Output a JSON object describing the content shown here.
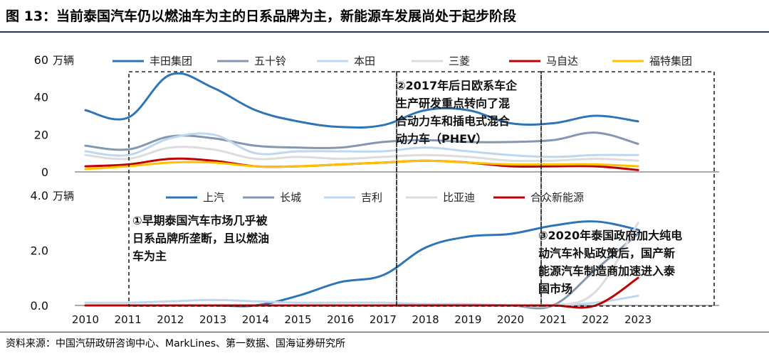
{
  "figure_title": "图 13：当前泰国汽车仍以燃油车为主的日系品牌为主，新能源车发展尚处于起步阶段",
  "source": "资料来源：中国汽研政研咨询中心、MarkLines、第一数据、国海证券研究所",
  "chart_data": [
    {
      "type": "line",
      "title": "",
      "ylabel": "万辆",
      "ylim": [
        0,
        60
      ],
      "yticks": [
        0,
        20,
        40,
        60
      ],
      "x": [
        2010,
        2011,
        2012,
        2013,
        2014,
        2015,
        2016,
        2017,
        2018,
        2019,
        2020,
        2021,
        2022,
        2023
      ],
      "series": [
        {
          "name": "丰田集团",
          "color": "#2e75b6",
          "values": [
            33,
            29,
            52,
            45,
            33,
            27,
            24,
            25,
            33,
            33,
            26,
            26,
            30,
            27
          ]
        },
        {
          "name": "五十铃",
          "color": "#8497b0",
          "values": [
            14,
            12,
            19,
            18,
            14,
            13,
            13,
            16,
            17,
            16,
            16,
            17,
            21,
            15
          ]
        },
        {
          "name": "本田",
          "color": "#bdd7ee",
          "values": [
            11,
            9,
            18,
            20,
            10,
            11,
            11,
            11,
            13,
            11,
            9,
            8,
            9,
            9
          ]
        },
        {
          "name": "三菱",
          "color": "#dcdcdc",
          "values": [
            9,
            7,
            13,
            12,
            7,
            8,
            7,
            8,
            9,
            8,
            6,
            6,
            7,
            6
          ]
        },
        {
          "name": "马自达",
          "color": "#c00000",
          "values": [
            3,
            4,
            7,
            6,
            3,
            3,
            4,
            5,
            6,
            5,
            3,
            3,
            3,
            1
          ]
        },
        {
          "name": "福特集团",
          "color": "#ffc000",
          "values": [
            1.5,
            3,
            5,
            5,
            3,
            3,
            4,
            5,
            6,
            5,
            4,
            4,
            4,
            3
          ]
        }
      ]
    },
    {
      "type": "line",
      "title": "",
      "ylabel": "万辆",
      "ylim": [
        0,
        4.0
      ],
      "yticks": [
        "0.0",
        "2.0",
        "4.0"
      ],
      "x": [
        2010,
        2011,
        2012,
        2013,
        2014,
        2015,
        2016,
        2017,
        2018,
        2019,
        2020,
        2021,
        2022,
        2023
      ],
      "series": [
        {
          "name": "上汽",
          "color": "#2e75b6",
          "values": [
            0,
            0,
            0,
            0,
            0,
            0.35,
            0.85,
            1.1,
            2.1,
            2.5,
            2.6,
            2.9,
            3.05,
            2.75
          ]
        },
        {
          "name": "长城",
          "color": "#8497b0",
          "values": [
            0,
            0,
            0,
            0,
            0,
            0,
            0,
            0,
            0,
            0,
            0,
            0,
            1.3,
            2.6
          ]
        },
        {
          "name": "吉利",
          "color": "#bdd7ee",
          "values": [
            0.1,
            0.1,
            0.15,
            0.2,
            0.15,
            0.1,
            0.1,
            0.1,
            0.05,
            0.05,
            0,
            0,
            0.1,
            0.35
          ]
        },
        {
          "name": "比亚迪",
          "color": "#dcdcdc",
          "values": [
            0,
            0,
            0,
            0,
            0,
            0,
            0,
            0,
            0,
            0,
            0,
            0,
            0.5,
            3.0
          ]
        },
        {
          "name": "合众新能源",
          "color": "#c00000",
          "values": [
            0,
            0,
            0,
            0,
            0,
            0,
            0,
            0,
            0,
            0,
            0,
            0,
            0,
            1.0
          ]
        }
      ]
    }
  ],
  "xaxis_labels": [
    "2010",
    "2011",
    "2012",
    "2013",
    "2014",
    "2015",
    "2016",
    "2017",
    "2018",
    "2019",
    "2020",
    "2021",
    "2022",
    "2023"
  ],
  "annotations": [
    {
      "id": "note1",
      "lines": [
        "①早期泰国汽车市场几乎被",
        "日系品牌所垄断，且以燃油",
        "车为主"
      ]
    },
    {
      "id": "note2",
      "lines": [
        "②2017年后日欧系车企",
        "生产研发重点转向了混",
        "合动力车和插电式混合",
        "动力车（PHEV）"
      ]
    },
    {
      "id": "note3",
      "lines": [
        "③2020年泰国政府加大纯电",
        "动汽车补贴政策后，国产新",
        "能源汽车制造商加速进入泰",
        "国市场"
      ]
    }
  ]
}
